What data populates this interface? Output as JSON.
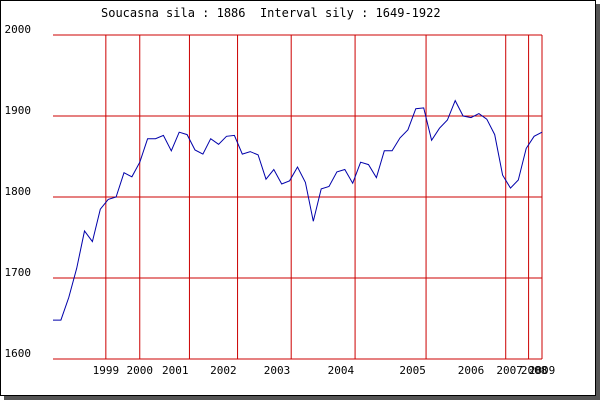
{
  "header": {
    "current_label": "Soucasna sila : ",
    "current_value": "1886",
    "interval_label": "Interval sily : ",
    "interval_value": "1649-1922"
  },
  "chart_data": {
    "type": "line",
    "title": "",
    "xlabel": "",
    "ylabel": "",
    "ylim": [
      1600,
      2000
    ],
    "y_ticks": [
      1600,
      1700,
      1800,
      1900,
      2000
    ],
    "grid": true,
    "legend": "none",
    "colors": {
      "line": "#0000aa",
      "grid": "#cc0000",
      "frame": "#000000"
    },
    "x_range": [
      0,
      62
    ],
    "x_ticks": [
      {
        "label": "1999",
        "x": 6.7
      },
      {
        "label": "2000",
        "x": 11.0
      },
      {
        "label": "2001",
        "x": 15.5
      },
      {
        "label": "2002",
        "x": 21.6
      },
      {
        "label": "2003",
        "x": 28.4
      },
      {
        "label": "2004",
        "x": 36.5
      },
      {
        "label": "2005",
        "x": 45.6
      },
      {
        "label": "2006",
        "x": 53.0
      },
      {
        "label": "2007",
        "x": 57.9
      },
      {
        "label": "2008",
        "x": 61.0
      },
      {
        "label": "2009",
        "x": 62.0
      }
    ],
    "v_gridlines": [
      6.7,
      11.0,
      17.3,
      23.4,
      30.2,
      38.3,
      47.3,
      57.4,
      60.3
    ],
    "series": [
      {
        "x": [
          0,
          1,
          2,
          3,
          4,
          5,
          6,
          7,
          8,
          9,
          10,
          11,
          12,
          13,
          14,
          15,
          16,
          17,
          18,
          19,
          20,
          21,
          22,
          23,
          24,
          25,
          26,
          27,
          28,
          29,
          30,
          31,
          32,
          33,
          34,
          35,
          36,
          37,
          38,
          39,
          40,
          41,
          42,
          43,
          44,
          45,
          46,
          47,
          48,
          49,
          50,
          51,
          52,
          53,
          54,
          55,
          56,
          57,
          58,
          59,
          60,
          61,
          62
        ],
        "values": [
          1648,
          1648,
          1676,
          1712,
          1758,
          1745,
          1785,
          1797,
          1800,
          1830,
          1825,
          1843,
          1872,
          1872,
          1876,
          1857,
          1880,
          1877,
          1858,
          1853,
          1872,
          1865,
          1875,
          1876,
          1853,
          1856,
          1852,
          1822,
          1834,
          1816,
          1820,
          1837,
          1818,
          1770,
          1810,
          1813,
          1831,
          1834,
          1817,
          1843,
          1840,
          1824,
          1857,
          1857,
          1873,
          1883,
          1909,
          1910,
          1870,
          1885,
          1895,
          1919,
          1900,
          1898,
          1903,
          1896,
          1877,
          1827,
          1811,
          1821,
          1860,
          1875,
          1880
        ]
      }
    ]
  }
}
